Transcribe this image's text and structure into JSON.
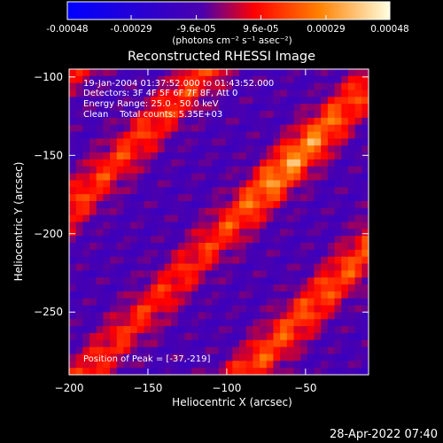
{
  "colorbar": {
    "tick_labels": [
      "-0.00048",
      "-0.00029",
      "-9.6e-05",
      "9.6e-05",
      "0.00029",
      "0.00048"
    ],
    "tick_values": [
      -0.00048,
      -0.00029,
      -9.6e-05,
      9.6e-05,
      0.00029,
      0.00048
    ],
    "range": [
      -0.00048,
      0.00048
    ],
    "units_label": "(photons cm⁻² s⁻¹ asec⁻²)",
    "colors": [
      "#0000ff",
      "#4b00ad",
      "#ff0000",
      "#ff8000",
      "#ffffe0"
    ]
  },
  "chart_data": {
    "type": "heatmap",
    "title": "Reconstructed RHESSI Image",
    "xlabel": "Heliocentric X (arcsec)",
    "ylabel": "Heliocentric Y (arcsec)",
    "xlim": [
      -200,
      -10
    ],
    "ylim": [
      -290,
      -95
    ],
    "x_ticks": [
      -200,
      -150,
      -100,
      -50
    ],
    "y_ticks": [
      -100,
      -150,
      -200,
      -250
    ],
    "x_tick_labels": [
      "−200",
      "−150",
      "−100",
      "−50"
    ],
    "y_tick_labels": [
      "−100",
      "−150",
      "−200",
      "−250"
    ],
    "bands": [
      {
        "offset": -1.0,
        "amplitude": 0.0002
      },
      {
        "offset": -0.55,
        "amplitude": 0.00028
      },
      {
        "offset": 0.05,
        "amplitude": 0.00046
      },
      {
        "offset": 0.6,
        "amplitude": 0.00032
      }
    ],
    "peak_position": [
      -37,
      -219
    ],
    "info_lines": [
      "19-Jan-2004 01:37:52.000 to 01:43:52.000",
      "Detectors: 3F 4F 5F 6F 7F 8F, Att 0",
      "Energy Range: 25.0 - 50.0 keV",
      "Clean    Total counts: 5.35E+03"
    ],
    "peak_label": "Position of Peak = [-37,-219]"
  },
  "footer": {
    "timestamp": "28-Apr-2022 07:40"
  }
}
